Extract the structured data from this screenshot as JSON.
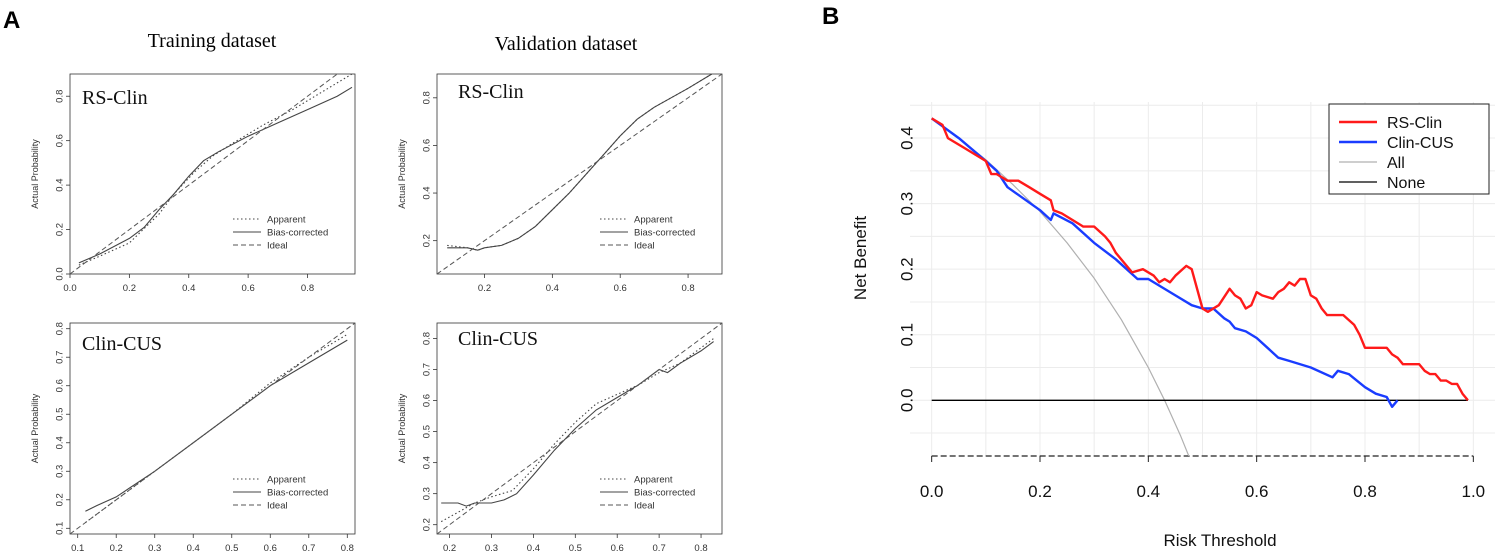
{
  "figure": {
    "panel_a_label": "A",
    "panel_b_label": "B",
    "column_titles": [
      "Training dataset",
      "Validation dataset"
    ]
  },
  "chart_data": [
    {
      "type": "line",
      "title": "Training dataset",
      "panel_label": "RS-Clin",
      "xlabel": "",
      "ylabel": "Actual Probability",
      "xlim": [
        0.0,
        0.96
      ],
      "ylim": [
        0.0,
        0.9
      ],
      "xticks": [
        "0.0",
        "0.2",
        "0.4",
        "0.6",
        "0.8"
      ],
      "yticks": [
        "0.0",
        "0.2",
        "0.4",
        "0.6",
        "0.8"
      ],
      "legend": [
        "Apparent",
        "Bias-corrected",
        "Ideal"
      ],
      "series": [
        {
          "name": "Apparent",
          "x": [
            0.03,
            0.1,
            0.2,
            0.3,
            0.35,
            0.42,
            0.48,
            0.55,
            0.65,
            0.75,
            0.85,
            0.95
          ],
          "y": [
            0.04,
            0.08,
            0.14,
            0.27,
            0.36,
            0.46,
            0.53,
            0.59,
            0.67,
            0.74,
            0.82,
            0.9
          ]
        },
        {
          "name": "Bias-corrected",
          "x": [
            0.03,
            0.1,
            0.2,
            0.25,
            0.3,
            0.35,
            0.4,
            0.45,
            0.5,
            0.6,
            0.7,
            0.8,
            0.9,
            0.95
          ],
          "y": [
            0.05,
            0.09,
            0.16,
            0.21,
            0.29,
            0.36,
            0.44,
            0.51,
            0.55,
            0.62,
            0.68,
            0.74,
            0.8,
            0.84
          ]
        },
        {
          "name": "Ideal",
          "x": [
            0.0,
            0.96
          ],
          "y": [
            0.0,
            0.96
          ]
        }
      ]
    },
    {
      "type": "line",
      "title": "Validation dataset",
      "panel_label": "RS-Clin",
      "xlabel": "",
      "ylabel": "Actual Probability",
      "xlim": [
        0.06,
        0.9
      ],
      "ylim": [
        0.06,
        0.9
      ],
      "xticks": [
        "0.2",
        "0.4",
        "0.6",
        "0.8"
      ],
      "yticks": [
        "0.2",
        "0.4",
        "0.6",
        "0.8"
      ],
      "legend": [
        "Apparent",
        "Bias-corrected",
        "Ideal"
      ],
      "series": [
        {
          "name": "Apparent",
          "x": [
            0.09,
            0.15,
            0.18,
            0.2,
            0.25,
            0.3,
            0.35,
            0.4,
            0.45,
            0.5,
            0.55,
            0.6,
            0.65,
            0.7,
            0.75,
            0.8,
            0.87
          ],
          "y": [
            0.18,
            0.17,
            0.16,
            0.17,
            0.18,
            0.21,
            0.26,
            0.33,
            0.4,
            0.48,
            0.56,
            0.64,
            0.71,
            0.76,
            0.8,
            0.84,
            0.9
          ]
        },
        {
          "name": "Bias-corrected",
          "x": [
            0.09,
            0.15,
            0.18,
            0.2,
            0.25,
            0.3,
            0.35,
            0.4,
            0.45,
            0.5,
            0.55,
            0.6,
            0.65,
            0.7,
            0.75,
            0.8,
            0.87
          ],
          "y": [
            0.17,
            0.17,
            0.16,
            0.17,
            0.18,
            0.21,
            0.26,
            0.33,
            0.4,
            0.48,
            0.56,
            0.64,
            0.71,
            0.76,
            0.8,
            0.84,
            0.9
          ]
        },
        {
          "name": "Ideal",
          "x": [
            0.06,
            0.9
          ],
          "y": [
            0.06,
            0.9
          ]
        }
      ]
    },
    {
      "type": "line",
      "title": "Training dataset",
      "panel_label": "Clin-CUS",
      "xlabel": "",
      "ylabel": "Actual Probability",
      "xlim": [
        0.08,
        0.82
      ],
      "ylim": [
        0.08,
        0.82
      ],
      "xticks": [
        "0.1",
        "0.2",
        "0.3",
        "0.4",
        "0.5",
        "0.6",
        "0.7",
        "0.8"
      ],
      "yticks": [
        "0.1",
        "0.2",
        "0.3",
        "0.4",
        "0.5",
        "0.6",
        "0.7",
        "0.8"
      ],
      "legend": [
        "Apparent",
        "Bias-corrected",
        "Ideal"
      ],
      "series": [
        {
          "name": "Apparent",
          "x": [
            0.12,
            0.2,
            0.3,
            0.4,
            0.5,
            0.6,
            0.7,
            0.8
          ],
          "y": [
            0.12,
            0.2,
            0.3,
            0.4,
            0.5,
            0.61,
            0.7,
            0.78
          ]
        },
        {
          "name": "Bias-corrected",
          "x": [
            0.12,
            0.15,
            0.2,
            0.3,
            0.4,
            0.5,
            0.6,
            0.7,
            0.8
          ],
          "y": [
            0.16,
            0.18,
            0.21,
            0.3,
            0.4,
            0.5,
            0.6,
            0.68,
            0.76
          ]
        },
        {
          "name": "Ideal",
          "x": [
            0.08,
            0.82
          ],
          "y": [
            0.08,
            0.82
          ]
        }
      ]
    },
    {
      "type": "line",
      "title": "Validation dataset",
      "panel_label": "Clin-CUS",
      "xlabel": "",
      "ylabel": "Actual Probability",
      "xlim": [
        0.17,
        0.85
      ],
      "ylim": [
        0.17,
        0.85
      ],
      "xticks": [
        "0.2",
        "0.3",
        "0.4",
        "0.5",
        "0.6",
        "0.7",
        "0.8"
      ],
      "yticks": [
        "0.2",
        "0.3",
        "0.4",
        "0.5",
        "0.6",
        "0.7",
        "0.8"
      ],
      "legend": [
        "Apparent",
        "Bias-corrected",
        "Ideal"
      ],
      "series": [
        {
          "name": "Apparent",
          "x": [
            0.18,
            0.22,
            0.26,
            0.3,
            0.35,
            0.4,
            0.45,
            0.5,
            0.55,
            0.6,
            0.65,
            0.7,
            0.75,
            0.83
          ],
          "y": [
            0.21,
            0.24,
            0.27,
            0.29,
            0.31,
            0.38,
            0.46,
            0.53,
            0.59,
            0.62,
            0.65,
            0.69,
            0.72,
            0.8
          ]
        },
        {
          "name": "Bias-corrected",
          "x": [
            0.18,
            0.2,
            0.22,
            0.24,
            0.26,
            0.28,
            0.3,
            0.33,
            0.36,
            0.4,
            0.45,
            0.5,
            0.55,
            0.6,
            0.65,
            0.7,
            0.72,
            0.75,
            0.8,
            0.83
          ],
          "y": [
            0.27,
            0.27,
            0.27,
            0.26,
            0.27,
            0.27,
            0.27,
            0.28,
            0.3,
            0.36,
            0.44,
            0.51,
            0.57,
            0.61,
            0.65,
            0.7,
            0.69,
            0.72,
            0.76,
            0.79
          ]
        },
        {
          "name": "Ideal",
          "x": [
            0.17,
            0.85
          ],
          "y": [
            0.17,
            0.85
          ]
        }
      ]
    },
    {
      "type": "line",
      "title": "",
      "panel_label": "B",
      "xlabel": "Risk Threshold",
      "ylabel": "Net Benefit",
      "xlim": [
        -0.04,
        1.04
      ],
      "ylim": [
        -0.085,
        0.455
      ],
      "xticks": [
        "0.0",
        "0.2",
        "0.4",
        "0.6",
        "0.8",
        "1.0"
      ],
      "yticks": [
        "0.0",
        "0.1",
        "0.2",
        "0.3",
        "0.4"
      ],
      "grid": true,
      "legend": [
        "RS-Clin",
        "Clin-CUS",
        "All",
        "None"
      ],
      "legend_position": "top-right",
      "series": [
        {
          "name": "RS-Clin",
          "color": "#ff1a1a",
          "x": [
            0.0,
            0.02,
            0.03,
            0.06,
            0.1,
            0.11,
            0.12,
            0.14,
            0.16,
            0.18,
            0.2,
            0.22,
            0.225,
            0.24,
            0.26,
            0.28,
            0.3,
            0.32,
            0.33,
            0.34,
            0.36,
            0.37,
            0.39,
            0.41,
            0.42,
            0.43,
            0.44,
            0.45,
            0.47,
            0.48,
            0.5,
            0.51,
            0.53,
            0.55,
            0.56,
            0.57,
            0.58,
            0.59,
            0.6,
            0.61,
            0.63,
            0.64,
            0.65,
            0.66,
            0.67,
            0.68,
            0.69,
            0.7,
            0.71,
            0.72,
            0.73,
            0.75,
            0.76,
            0.78,
            0.79,
            0.8,
            0.82,
            0.84,
            0.85,
            0.86,
            0.87,
            0.88,
            0.9,
            0.91,
            0.92,
            0.93,
            0.94,
            0.95,
            0.96,
            0.97,
            0.98,
            0.99
          ],
          "y": [
            0.43,
            0.42,
            0.4,
            0.385,
            0.365,
            0.345,
            0.345,
            0.335,
            0.335,
            0.325,
            0.315,
            0.305,
            0.29,
            0.285,
            0.275,
            0.265,
            0.265,
            0.25,
            0.24,
            0.225,
            0.205,
            0.195,
            0.2,
            0.19,
            0.18,
            0.185,
            0.18,
            0.19,
            0.205,
            0.2,
            0.14,
            0.135,
            0.145,
            0.17,
            0.16,
            0.155,
            0.14,
            0.145,
            0.165,
            0.16,
            0.155,
            0.165,
            0.17,
            0.18,
            0.175,
            0.185,
            0.185,
            0.16,
            0.155,
            0.14,
            0.13,
            0.13,
            0.13,
            0.115,
            0.1,
            0.08,
            0.08,
            0.08,
            0.07,
            0.065,
            0.055,
            0.055,
            0.055,
            0.045,
            0.04,
            0.04,
            0.03,
            0.03,
            0.025,
            0.025,
            0.01,
            0.0
          ]
        },
        {
          "name": "Clin-CUS",
          "color": "#1a3cff",
          "x": [
            0.0,
            0.05,
            0.1,
            0.12,
            0.14,
            0.2,
            0.22,
            0.225,
            0.26,
            0.3,
            0.34,
            0.36,
            0.38,
            0.4,
            0.45,
            0.48,
            0.5,
            0.52,
            0.54,
            0.55,
            0.56,
            0.58,
            0.6,
            0.62,
            0.64,
            0.66,
            0.7,
            0.74,
            0.75,
            0.77,
            0.8,
            0.82,
            0.84,
            0.85,
            0.86
          ],
          "y": [
            0.43,
            0.4,
            0.365,
            0.35,
            0.325,
            0.29,
            0.275,
            0.285,
            0.27,
            0.24,
            0.215,
            0.2,
            0.185,
            0.185,
            0.16,
            0.145,
            0.14,
            0.14,
            0.125,
            0.12,
            0.11,
            0.105,
            0.095,
            0.08,
            0.065,
            0.06,
            0.05,
            0.035,
            0.045,
            0.04,
            0.02,
            0.01,
            0.005,
            -0.01,
            0.0
          ]
        },
        {
          "name": "All",
          "color": "#b0b0b0",
          "x": [
            0.0,
            0.05,
            0.1,
            0.15,
            0.2,
            0.25,
            0.3,
            0.35,
            0.4,
            0.43,
            0.46,
            0.48
          ],
          "y": [
            0.43,
            0.4,
            0.367,
            0.329,
            0.288,
            0.24,
            0.186,
            0.123,
            0.05,
            0.0,
            -0.055,
            -0.096
          ]
        },
        {
          "name": "None",
          "color": "#000000",
          "x": [
            0.0,
            0.99
          ],
          "y": [
            0.0,
            0.0
          ]
        }
      ]
    }
  ]
}
